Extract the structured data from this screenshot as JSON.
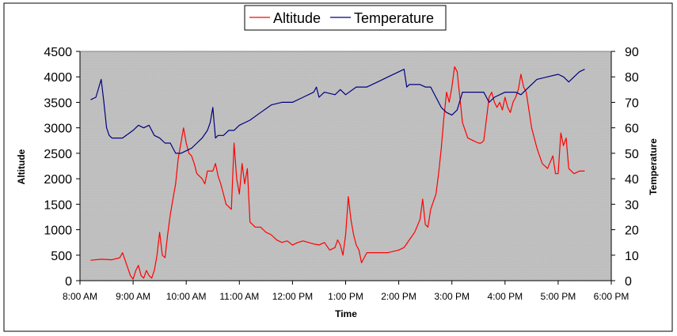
{
  "chart_data": {
    "type": "line",
    "title": "",
    "xlabel": "Time",
    "ylabel": "Altitude",
    "y2label": "Temperature",
    "x_unit": "hours",
    "xlim": [
      8,
      18
    ],
    "ylim": [
      0,
      4500
    ],
    "y2lim": [
      0,
      90
    ],
    "x_ticks": [
      {
        "value": 8,
        "label": "8:00 AM"
      },
      {
        "value": 9,
        "label": "9:00 AM"
      },
      {
        "value": 10,
        "label": "10:00 AM"
      },
      {
        "value": 11,
        "label": "11:00 AM"
      },
      {
        "value": 12,
        "label": "12:00 PM"
      },
      {
        "value": 13,
        "label": "1:00 PM"
      },
      {
        "value": 14,
        "label": "2:00 PM"
      },
      {
        "value": 15,
        "label": "3:00 PM"
      },
      {
        "value": 16,
        "label": "4:00 PM"
      },
      {
        "value": 17,
        "label": "5:00 PM"
      },
      {
        "value": 18,
        "label": "6:00 PM"
      }
    ],
    "y_ticks": [
      "0",
      "500",
      "1000",
      "1500",
      "2000",
      "2500",
      "3000",
      "3500",
      "4000",
      "4500"
    ],
    "y2_ticks": [
      "0",
      "10",
      "20",
      "30",
      "40",
      "50",
      "60",
      "70",
      "80",
      "90"
    ],
    "legend": {
      "position": "top-center"
    },
    "series": [
      {
        "name": "Altitude",
        "color": "#ff0000",
        "axis": "left",
        "x": [
          8.2,
          8.4,
          8.6,
          8.75,
          8.8,
          8.9,
          8.95,
          9.0,
          9.05,
          9.1,
          9.15,
          9.2,
          9.25,
          9.3,
          9.35,
          9.4,
          9.45,
          9.5,
          9.55,
          9.6,
          9.65,
          9.7,
          9.75,
          9.8,
          9.85,
          9.9,
          9.95,
          10.0,
          10.05,
          10.1,
          10.15,
          10.2,
          10.25,
          10.3,
          10.35,
          10.4,
          10.5,
          10.55,
          10.6,
          10.65,
          10.7,
          10.75,
          10.8,
          10.85,
          10.9,
          10.95,
          11.0,
          11.05,
          11.1,
          11.15,
          11.2,
          11.3,
          11.4,
          11.5,
          11.6,
          11.7,
          11.8,
          11.9,
          12.0,
          12.1,
          12.2,
          12.3,
          12.4,
          12.5,
          12.6,
          12.7,
          12.8,
          12.85,
          12.9,
          12.95,
          13.0,
          13.05,
          13.1,
          13.15,
          13.2,
          13.25,
          13.3,
          13.4,
          13.6,
          13.8,
          14.0,
          14.1,
          14.2,
          14.3,
          14.4,
          14.45,
          14.5,
          14.55,
          14.6,
          14.7,
          14.75,
          14.8,
          14.85,
          14.9,
          14.95,
          15.0,
          15.05,
          15.1,
          15.2,
          15.3,
          15.4,
          15.5,
          15.55,
          15.6,
          15.7,
          15.75,
          15.8,
          15.85,
          15.9,
          15.95,
          16.0,
          16.05,
          16.1,
          16.15,
          16.2,
          16.25,
          16.3,
          16.35,
          16.4,
          16.5,
          16.6,
          16.7,
          16.8,
          16.9,
          16.95,
          17.0,
          17.05,
          17.1,
          17.15,
          17.2,
          17.3,
          17.4,
          17.5
        ],
        "values": [
          400,
          420,
          410,
          450,
          550,
          250,
          100,
          30,
          200,
          300,
          100,
          50,
          200,
          100,
          50,
          200,
          500,
          950,
          500,
          450,
          900,
          1300,
          1600,
          1900,
          2400,
          2700,
          3000,
          2700,
          2500,
          2450,
          2300,
          2100,
          2050,
          2000,
          1900,
          2150,
          2150,
          2300,
          2050,
          1900,
          1700,
          1500,
          1450,
          1400,
          2700,
          2000,
          1700,
          2300,
          1900,
          2200,
          1150,
          1050,
          1050,
          950,
          900,
          800,
          750,
          780,
          700,
          750,
          780,
          750,
          720,
          700,
          750,
          600,
          650,
          800,
          700,
          500,
          900,
          1650,
          1200,
          900,
          700,
          600,
          350,
          550,
          550,
          550,
          600,
          650,
          800,
          950,
          1200,
          1600,
          1100,
          1050,
          1400,
          1700,
          2100,
          2600,
          3200,
          3700,
          3500,
          3800,
          4200,
          4100,
          3100,
          2800,
          2750,
          2700,
          2700,
          2750,
          3600,
          3700,
          3500,
          3400,
          3500,
          3350,
          3600,
          3400,
          3300,
          3500,
          3600,
          3750,
          4050,
          3800,
          3700,
          3000,
          2600,
          2300,
          2200,
          2450,
          2100,
          2100,
          2900,
          2650,
          2800,
          2200,
          2100,
          2150,
          2150
        ]
      },
      {
        "name": "Temperature",
        "color": "#000080",
        "axis": "right",
        "x": [
          8.2,
          8.3,
          8.4,
          8.45,
          8.5,
          8.55,
          8.6,
          8.7,
          8.8,
          9.0,
          9.1,
          9.2,
          9.3,
          9.4,
          9.5,
          9.6,
          9.7,
          9.8,
          9.9,
          10.0,
          10.1,
          10.2,
          10.3,
          10.4,
          10.45,
          10.5,
          10.55,
          10.6,
          10.7,
          10.8,
          10.9,
          11.0,
          11.2,
          11.4,
          11.6,
          11.8,
          12.0,
          12.2,
          12.4,
          12.45,
          12.5,
          12.6,
          12.8,
          12.9,
          13.0,
          13.2,
          13.4,
          13.6,
          13.8,
          14.0,
          14.1,
          14.15,
          14.2,
          14.4,
          14.5,
          14.6,
          14.7,
          14.8,
          14.9,
          15.0,
          15.1,
          15.2,
          15.4,
          15.6,
          15.7,
          15.8,
          16.0,
          16.2,
          16.3,
          16.4,
          16.6,
          16.8,
          17.0,
          17.1,
          17.2,
          17.3,
          17.4,
          17.5
        ],
        "values": [
          71,
          72,
          79,
          70,
          60,
          57,
          56,
          56,
          56,
          59,
          61,
          60,
          61,
          57,
          56,
          54,
          54,
          50,
          50,
          51,
          52,
          54,
          56,
          59,
          62,
          68,
          56,
          57,
          57,
          59,
          59,
          61,
          63,
          66,
          69,
          70,
          70,
          72,
          74,
          76,
          72,
          74,
          73,
          75,
          73,
          76,
          76,
          78,
          80,
          82,
          83,
          76,
          77,
          77,
          76,
          76,
          72,
          68,
          66,
          65,
          67,
          74,
          74,
          74,
          70,
          72,
          74,
          74,
          73,
          75,
          79,
          80,
          81,
          80,
          78,
          80,
          82,
          83
        ]
      }
    ]
  }
}
